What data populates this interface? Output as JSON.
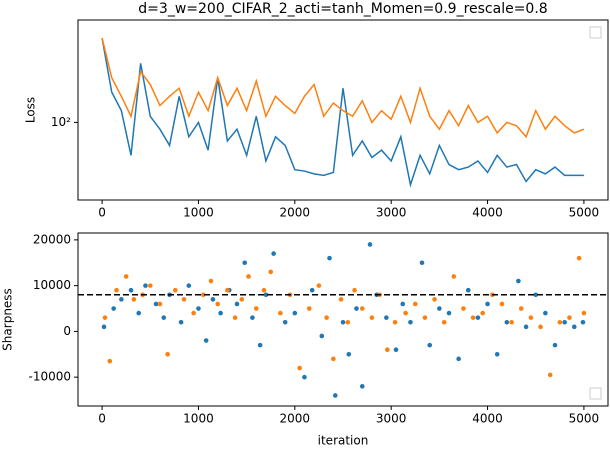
{
  "chart_data": [
    {
      "type": "line",
      "title": "d=3_w=200_CIFAR_2_acti=tanh_Momen=0.9_rescale=0.8",
      "ylabel": "Loss",
      "log_y": true,
      "xlim": [
        -250,
        5250
      ],
      "xticks": [
        0,
        1000,
        2000,
        3000,
        4000,
        5000
      ],
      "ylim": [
        30,
        490
      ],
      "yticks": [
        {
          "value": 100,
          "label": "10²"
        }
      ],
      "x": [
        0,
        100,
        200,
        300,
        400,
        500,
        600,
        700,
        800,
        900,
        1000,
        1100,
        1200,
        1300,
        1400,
        1500,
        1600,
        1700,
        1800,
        1900,
        2000,
        2100,
        2200,
        2300,
        2400,
        2500,
        2600,
        2700,
        2800,
        2900,
        3000,
        3100,
        3200,
        3300,
        3400,
        3500,
        3600,
        3700,
        3800,
        3900,
        4000,
        4100,
        4200,
        4300,
        4400,
        4500,
        4600,
        4700,
        4800,
        4900,
        5000
      ],
      "series": [
        {
          "color": "#1f77b4",
          "values": [
            370,
            160,
            120,
            60,
            250,
            110,
            90,
            70,
            150,
            80,
            100,
            65,
            200,
            75,
            90,
            60,
            110,
            55,
            80,
            70,
            48,
            47,
            45,
            44,
            46,
            170,
            60,
            75,
            58,
            65,
            55,
            80,
            38,
            60,
            45,
            70,
            52,
            48,
            50,
            55,
            46,
            60,
            50,
            52,
            40,
            48,
            45,
            50,
            44,
            44,
            44
          ]
        },
        {
          "color": "#ff7f0e",
          "values": [
            370,
            200,
            150,
            110,
            220,
            180,
            130,
            150,
            170,
            110,
            160,
            120,
            200,
            130,
            170,
            120,
            190,
            110,
            150,
            130,
            115,
            150,
            180,
            110,
            135,
            120,
            110,
            140,
            100,
            120,
            105,
            150,
            100,
            170,
            110,
            90,
            120,
            95,
            130,
            100,
            110,
            85,
            100,
            95,
            80,
            120,
            90,
            110,
            95,
            85,
            90
          ]
        }
      ]
    },
    {
      "type": "scatter",
      "ylabel": "Sharpness",
      "xlabel": "iteration",
      "xlim": [
        -250,
        5250
      ],
      "xticks": [
        0,
        1000,
        2000,
        3000,
        4000,
        5000
      ],
      "ylim": [
        -16300,
        21500
      ],
      "yticks": [
        -10000,
        0,
        10000,
        20000
      ],
      "hline": 8000,
      "series": [
        {
          "color": "#1f77b4",
          "x": [
            20,
            120,
            200,
            300,
            380,
            450,
            560,
            640,
            700,
            820,
            900,
            1000,
            1080,
            1150,
            1230,
            1320,
            1400,
            1480,
            1560,
            1640,
            1700,
            1780,
            1900,
            2000,
            2100,
            2180,
            2280,
            2360,
            2420,
            2500,
            2560,
            2640,
            2700,
            2780,
            2850,
            2950,
            3050,
            3120,
            3200,
            3320,
            3400,
            3500,
            3600,
            3700,
            3800,
            3900,
            4000,
            4100,
            4200,
            4320,
            4400,
            4500,
            4600,
            4700,
            4800,
            4900,
            4990
          ],
          "values": [
            1000,
            5000,
            7000,
            9000,
            4000,
            10000,
            6000,
            3000,
            8000,
            2000,
            10000,
            5000,
            -2000,
            7000,
            4000,
            9000,
            6000,
            15000,
            3000,
            -3000,
            8000,
            17000,
            2000,
            4000,
            -10000,
            9000,
            -1000,
            16000,
            -14000,
            2000,
            -5000,
            5000,
            -12000,
            19000,
            8000,
            3000,
            -4000,
            6000,
            2000,
            15000,
            -3000,
            5000,
            4000,
            -6000,
            9000,
            3000,
            6000,
            -5000,
            2000,
            11000,
            1000,
            8000,
            4000,
            -3000,
            2000,
            1000,
            2000
          ]
        },
        {
          "color": "#ff7f0e",
          "x": [
            30,
            80,
            150,
            250,
            330,
            420,
            500,
            600,
            680,
            760,
            850,
            950,
            1050,
            1130,
            1200,
            1300,
            1380,
            1450,
            1520,
            1600,
            1680,
            1750,
            1850,
            1950,
            2050,
            2150,
            2250,
            2330,
            2400,
            2480,
            2550,
            2620,
            2700,
            2800,
            2880,
            2960,
            3040,
            3150,
            3250,
            3350,
            3450,
            3550,
            3650,
            3750,
            3850,
            3950,
            4050,
            4150,
            4250,
            4350,
            4450,
            4550,
            4650,
            4750,
            4850,
            4950,
            5000
          ],
          "values": [
            3000,
            -6500,
            9000,
            12000,
            7000,
            8000,
            10000,
            6000,
            -5000,
            9000,
            7000,
            4000,
            8000,
            11000,
            6000,
            9000,
            3000,
            7000,
            12000,
            5000,
            9000,
            13000,
            4000,
            8000,
            -8000,
            5000,
            10000,
            3000,
            -6000,
            7000,
            2000,
            9000,
            5000,
            3000,
            8000,
            -4000,
            2000,
            4000,
            6000,
            3000,
            7000,
            2000,
            12000,
            5000,
            3000,
            4000,
            8000,
            6000,
            2000,
            5000,
            3000,
            1000,
            -9500,
            2000,
            3000,
            16000,
            4000
          ]
        }
      ]
    }
  ]
}
